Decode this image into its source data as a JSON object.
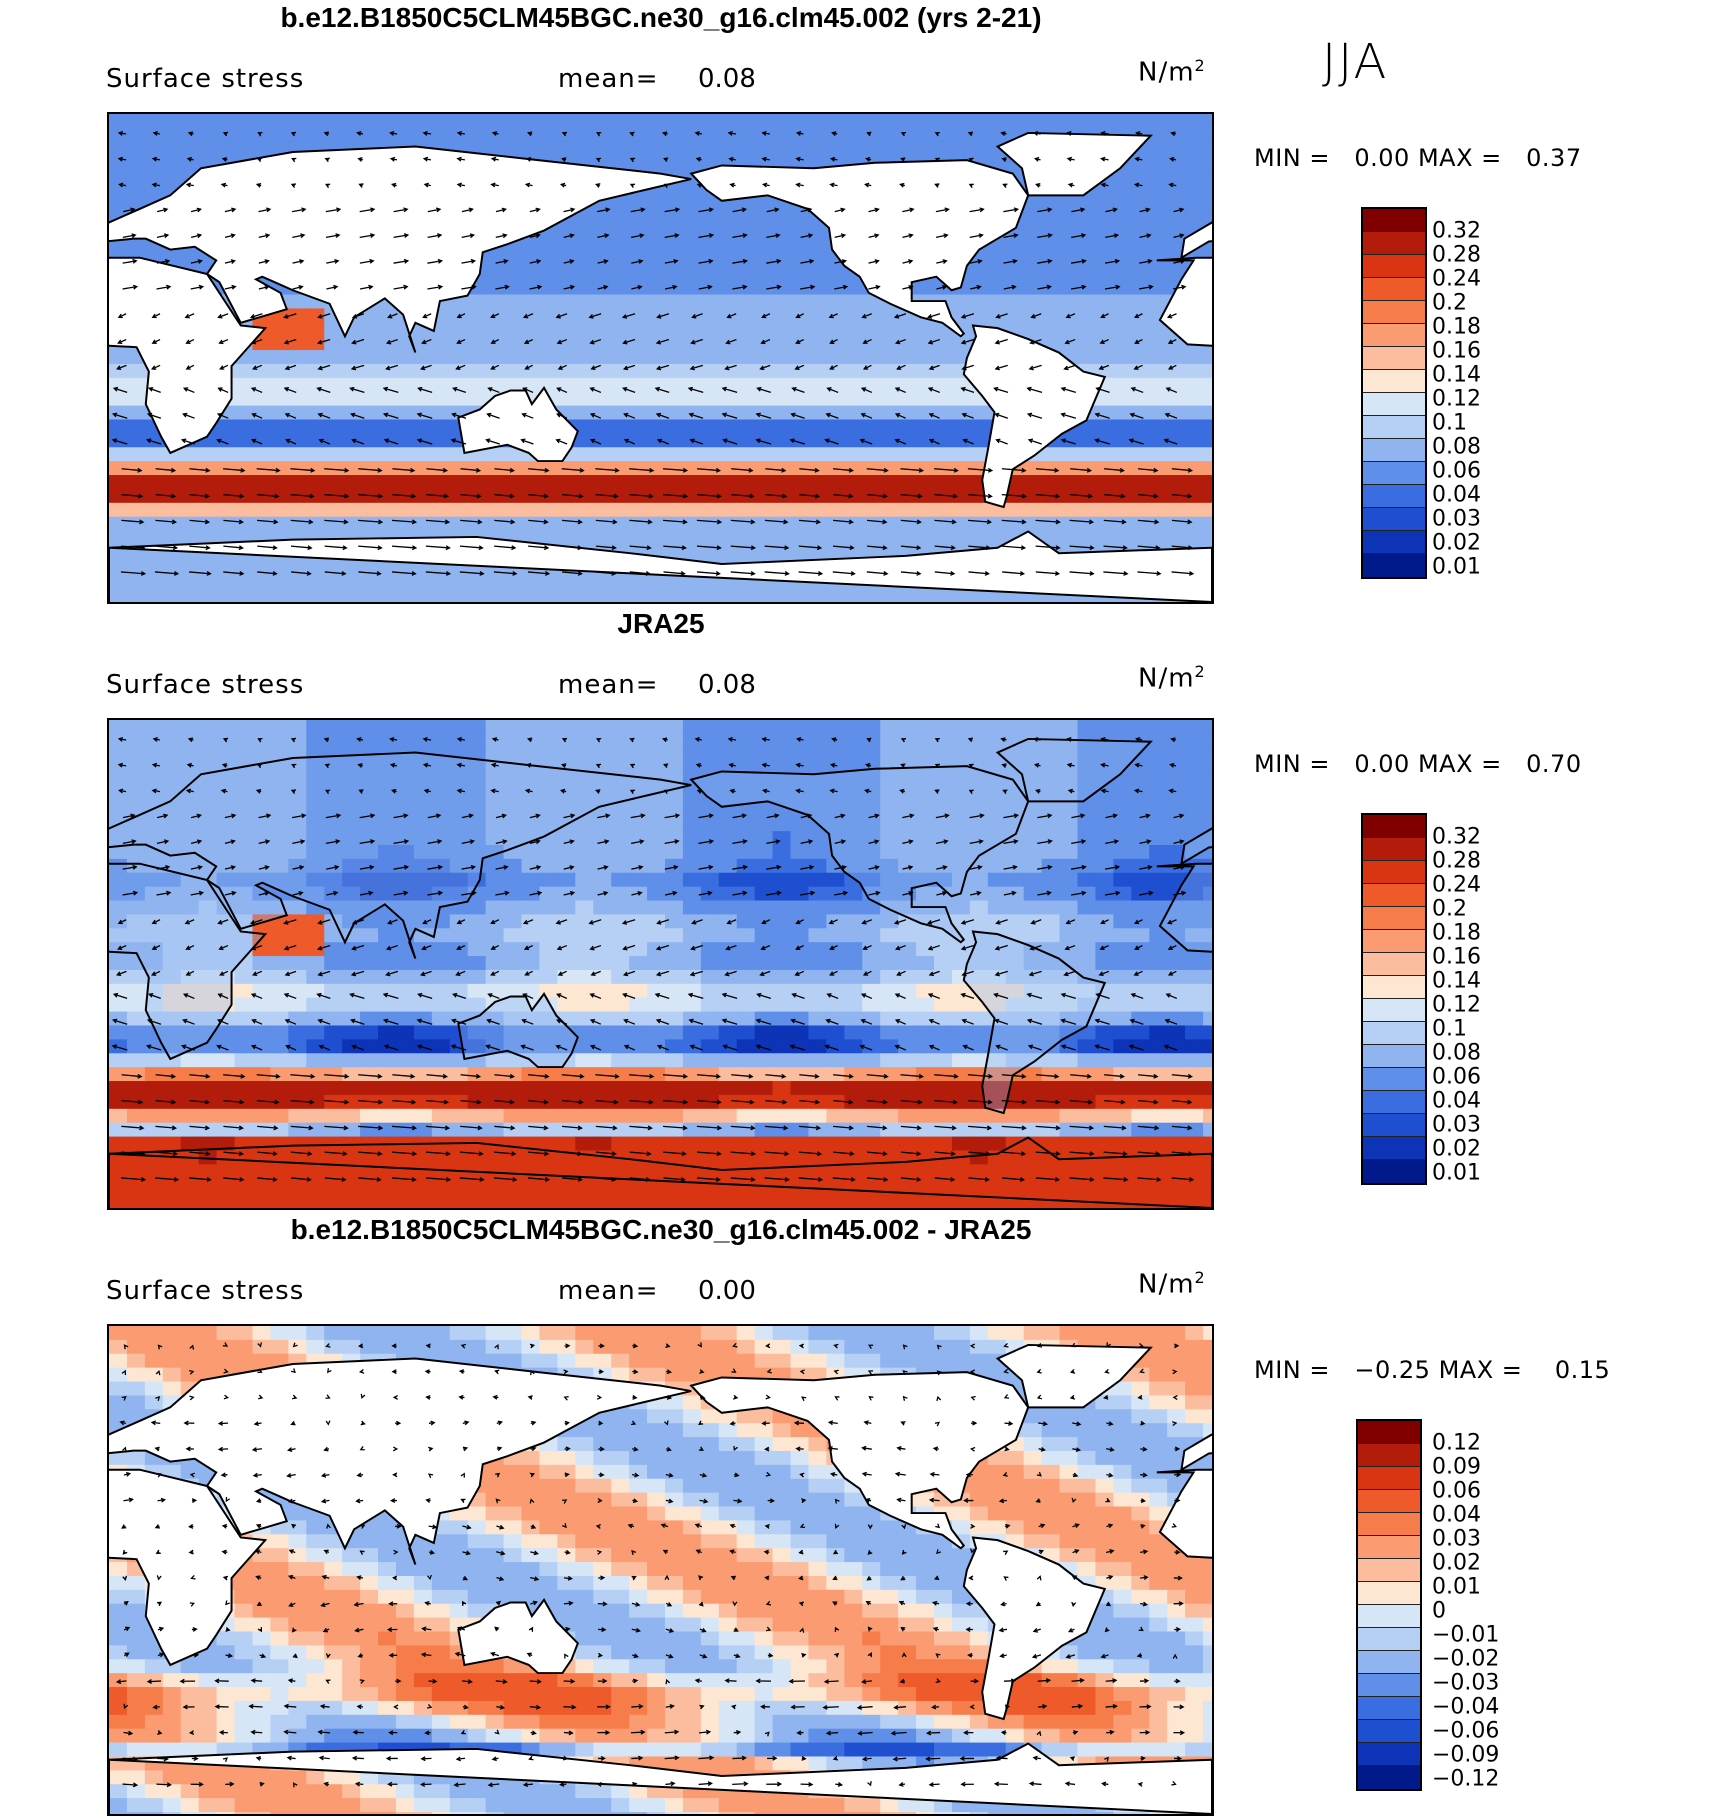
{
  "season": "JJA",
  "panels": [
    {
      "title": "b.e12.B1850C5CLM45BGC.ne30_g16.clm45.002 (yrs 2-21)",
      "variable": "Surface stress",
      "mean_label": "mean=",
      "mean_value": "0.08",
      "units": "N/m",
      "units_exp": "2",
      "min_label": "MIN =",
      "min_value": "0.00",
      "max_label": "MAX =",
      "max_value": "0.37",
      "colorbar": {
        "labels": [
          "0.32",
          "0.28",
          "0.24",
          "0.2",
          "0.18",
          "0.16",
          "0.14",
          "0.12",
          "0.1",
          "0.08",
          "0.06",
          "0.04",
          "0.03",
          "0.02",
          "0.01"
        ],
        "colors": [
          "#800000",
          "#b31c0a",
          "#d93512",
          "#ee5a2a",
          "#f67d4a",
          "#fb9b72",
          "#fcbd9e",
          "#fde6d2",
          "#d6e6f7",
          "#b5d0f4",
          "#8fb4f0",
          "#5f8fe8",
          "#3a6de0",
          "#1f4fd1",
          "#0d33b6",
          "#001a8c"
        ],
        "value_fracs": [
          0.32,
          0.28,
          0.24,
          0.2,
          0.18,
          0.16,
          0.14,
          0.12,
          0.1,
          0.08,
          0.06,
          0.04,
          0.03,
          0.02,
          0.01
        ]
      }
    },
    {
      "title": "JRA25",
      "variable": "Surface stress",
      "mean_label": "mean=",
      "mean_value": "0.08",
      "units": "N/m",
      "units_exp": "2",
      "min_label": "MIN =",
      "min_value": "0.00",
      "max_label": "MAX =",
      "max_value": "0.70",
      "colorbar": {
        "labels": [
          "0.32",
          "0.28",
          "0.24",
          "0.2",
          "0.18",
          "0.16",
          "0.14",
          "0.12",
          "0.1",
          "0.08",
          "0.06",
          "0.04",
          "0.03",
          "0.02",
          "0.01"
        ],
        "colors": [
          "#800000",
          "#b31c0a",
          "#d93512",
          "#ee5a2a",
          "#f67d4a",
          "#fb9b72",
          "#fcbd9e",
          "#fde6d2",
          "#d6e6f7",
          "#b5d0f4",
          "#8fb4f0",
          "#5f8fe8",
          "#3a6de0",
          "#1f4fd1",
          "#0d33b6",
          "#001a8c"
        ]
      }
    },
    {
      "title": "b.e12.B1850C5CLM45BGC.ne30_g16.clm45.002 - JRA25",
      "variable": "Surface stress",
      "mean_label": "mean=",
      "mean_value": "0.00",
      "units": "N/m",
      "units_exp": "2",
      "min_label": "MIN =",
      "min_value": "−0.25",
      "max_label": "MAX =",
      "max_value": "0.15",
      "colorbar": {
        "labels": [
          "0.12",
          "0.09",
          "0.06",
          "0.04",
          "0.03",
          "0.02",
          "0.01",
          "0",
          "−0.01",
          "−0.02",
          "−0.03",
          "−0.04",
          "−0.06",
          "−0.09",
          "−0.12"
        ],
        "colors": [
          "#800000",
          "#b31c0a",
          "#d93512",
          "#ee5a2a",
          "#f67d4a",
          "#fb9b72",
          "#fcbd9e",
          "#fde6d2",
          "#d6e6f7",
          "#b5d0f4",
          "#8fb4f0",
          "#5f8fe8",
          "#3a6de0",
          "#1f4fd1",
          "#0d33b6",
          "#001a8c"
        ]
      }
    }
  ]
}
